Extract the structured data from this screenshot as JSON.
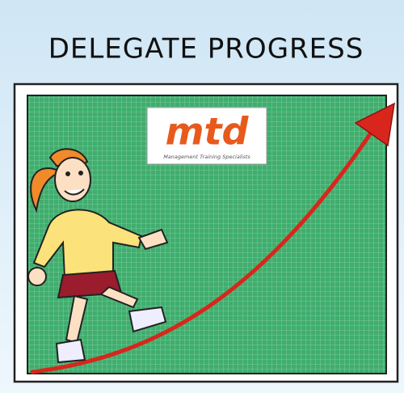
{
  "header": {
    "title": "DELEGATE PROGRESS"
  },
  "logo": {
    "name": "mtd",
    "tagline": "Management Training Specialists"
  }
}
